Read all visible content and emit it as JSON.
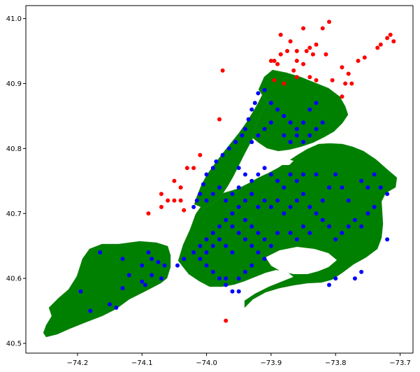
{
  "chart_data": {
    "type": "scatter",
    "title": "",
    "xlabel": "",
    "ylabel": "",
    "xlim": [
      -74.28,
      -73.68
    ],
    "ylim": [
      40.485,
      41.02
    ],
    "xticks": [
      -74.2,
      -74.1,
      -74.0,
      -73.9,
      -73.8,
      -73.7
    ],
    "xtick_labels": [
      "−74.2",
      "−74.1",
      "−74.0",
      "−73.9",
      "−73.8",
      "−73.7"
    ],
    "yticks": [
      40.5,
      40.6,
      40.7,
      40.8,
      40.9,
      41.0
    ],
    "ytick_labels": [
      "40.5",
      "40.6",
      "40.7",
      "40.8",
      "40.9",
      "41.0"
    ],
    "grid": false,
    "legend": "none",
    "background_map": {
      "fill": "#008000",
      "region": "New York City boroughs"
    },
    "series": [
      {
        "color": "#ff0000",
        "points": [
          [
            -73.97,
            40.535
          ],
          [
            -73.98,
            40.845
          ],
          [
            -73.975,
            40.92
          ],
          [
            -74.09,
            40.7
          ],
          [
            -74.06,
            40.72
          ],
          [
            -74.07,
            40.73
          ],
          [
            -74.05,
            40.75
          ],
          [
            -74.04,
            40.74
          ],
          [
            -74.02,
            40.77
          ],
          [
            -74.03,
            40.77
          ],
          [
            -74.01,
            40.79
          ],
          [
            -74.05,
            40.72
          ],
          [
            -74.04,
            40.72
          ],
          [
            -74.07,
            40.71
          ],
          [
            -74.035,
            40.705
          ],
          [
            -73.89,
            40.93
          ],
          [
            -73.885,
            40.975
          ],
          [
            -73.87,
            40.965
          ],
          [
            -73.85,
            40.985
          ],
          [
            -73.82,
            40.985
          ],
          [
            -73.81,
            40.995
          ],
          [
            -73.84,
            40.955
          ],
          [
            -73.83,
            40.96
          ],
          [
            -73.815,
            40.945
          ],
          [
            -73.835,
            40.945
          ],
          [
            -73.845,
            40.95
          ],
          [
            -73.885,
            40.945
          ],
          [
            -73.875,
            40.95
          ],
          [
            -73.86,
            40.95
          ],
          [
            -73.86,
            40.935
          ],
          [
            -73.85,
            40.93
          ],
          [
            -73.865,
            40.92
          ],
          [
            -73.84,
            40.91
          ],
          [
            -73.83,
            40.905
          ],
          [
            -73.805,
            40.905
          ],
          [
            -73.79,
            40.925
          ],
          [
            -73.785,
            40.9
          ],
          [
            -73.775,
            40.9
          ],
          [
            -73.78,
            40.915
          ],
          [
            -73.79,
            40.88
          ],
          [
            -73.765,
            40.935
          ],
          [
            -73.755,
            40.94
          ],
          [
            -73.735,
            40.955
          ],
          [
            -73.73,
            40.96
          ],
          [
            -73.72,
            40.97
          ],
          [
            -73.715,
            40.975
          ],
          [
            -73.71,
            40.965
          ],
          [
            -73.88,
            40.9
          ],
          [
            -73.895,
            40.905
          ],
          [
            -73.86,
            40.91
          ],
          [
            -73.895,
            40.935
          ],
          [
            -73.9,
            40.935
          ]
        ]
      },
      {
        "color": "#0000ff",
        "points": [
          [
            -74.195,
            40.58
          ],
          [
            -74.18,
            40.55
          ],
          [
            -74.15,
            40.56
          ],
          [
            -74.14,
            40.555
          ],
          [
            -74.13,
            40.585
          ],
          [
            -74.12,
            40.605
          ],
          [
            -74.165,
            40.64
          ],
          [
            -74.13,
            40.63
          ],
          [
            -74.1,
            40.62
          ],
          [
            -74.085,
            40.605
          ],
          [
            -74.07,
            40.6
          ],
          [
            -74.09,
            40.64
          ],
          [
            -74.1,
            40.595
          ],
          [
            -74.095,
            40.59
          ],
          [
            -74.085,
            40.63
          ],
          [
            -74.075,
            40.625
          ],
          [
            -74.065,
            40.62
          ],
          [
            -74.045,
            40.62
          ],
          [
            -74.035,
            40.63
          ],
          [
            -74.02,
            40.64
          ],
          [
            -74.01,
            40.63
          ],
          [
            -74.0,
            40.62
          ],
          [
            -73.99,
            40.61
          ],
          [
            -73.98,
            40.6
          ],
          [
            -73.97,
            40.59
          ],
          [
            -73.96,
            40.58
          ],
          [
            -73.95,
            40.6
          ],
          [
            -73.94,
            40.61
          ],
          [
            -73.93,
            40.62
          ],
          [
            -74.0,
            40.66
          ],
          [
            -73.99,
            40.67
          ],
          [
            -73.98,
            40.68
          ],
          [
            -73.97,
            40.69
          ],
          [
            -73.96,
            40.7
          ],
          [
            -73.95,
            40.71
          ],
          [
            -73.94,
            40.69
          ],
          [
            -73.93,
            40.68
          ],
          [
            -73.92,
            40.67
          ],
          [
            -73.91,
            40.66
          ],
          [
            -73.9,
            40.65
          ],
          [
            -73.89,
            40.67
          ],
          [
            -73.88,
            40.7
          ],
          [
            -73.87,
            40.71
          ],
          [
            -73.86,
            40.72
          ],
          [
            -73.85,
            40.73
          ],
          [
            -73.84,
            40.71
          ],
          [
            -73.83,
            40.7
          ],
          [
            -73.82,
            40.72
          ],
          [
            -73.81,
            40.74
          ],
          [
            -73.8,
            40.76
          ],
          [
            -73.79,
            40.74
          ],
          [
            -73.78,
            40.72
          ],
          [
            -73.77,
            40.69
          ],
          [
            -73.76,
            40.68
          ],
          [
            -73.75,
            40.7
          ],
          [
            -73.74,
            40.71
          ],
          [
            -73.73,
            40.74
          ],
          [
            -73.72,
            40.73
          ],
          [
            -73.72,
            40.66
          ],
          [
            -74.02,
            40.71
          ],
          [
            -74.015,
            40.72
          ],
          [
            -74.01,
            40.73
          ],
          [
            -74.005,
            40.745
          ],
          [
            -74.0,
            40.76
          ],
          [
            -73.99,
            40.77
          ],
          [
            -73.985,
            40.78
          ],
          [
            -73.975,
            40.79
          ],
          [
            -73.965,
            40.8
          ],
          [
            -73.955,
            40.81
          ],
          [
            -73.945,
            40.82
          ],
          [
            -73.94,
            40.83
          ],
          [
            -73.935,
            40.845
          ],
          [
            -73.93,
            40.86
          ],
          [
            -73.925,
            40.87
          ],
          [
            -73.92,
            40.885
          ],
          [
            -73.91,
            40.89
          ],
          [
            -73.9,
            40.87
          ],
          [
            -73.89,
            40.86
          ],
          [
            -73.88,
            40.85
          ],
          [
            -73.87,
            40.84
          ],
          [
            -73.86,
            40.83
          ],
          [
            -73.85,
            40.84
          ],
          [
            -73.84,
            40.86
          ],
          [
            -73.83,
            40.87
          ],
          [
            -73.9,
            40.84
          ],
          [
            -73.91,
            40.83
          ],
          [
            -73.92,
            40.82
          ],
          [
            -73.93,
            40.81
          ],
          [
            -73.88,
            40.82
          ],
          [
            -73.87,
            40.81
          ],
          [
            -73.86,
            40.82
          ],
          [
            -73.85,
            40.81
          ],
          [
            -73.84,
            40.82
          ],
          [
            -73.83,
            40.83
          ],
          [
            -73.82,
            40.84
          ],
          [
            -73.95,
            40.77
          ],
          [
            -73.94,
            40.76
          ],
          [
            -73.93,
            40.75
          ],
          [
            -73.92,
            40.76
          ],
          [
            -73.91,
            40.77
          ],
          [
            -73.9,
            40.76
          ],
          [
            -73.89,
            40.75
          ],
          [
            -73.88,
            40.74
          ],
          [
            -73.87,
            40.76
          ],
          [
            -73.86,
            40.75
          ],
          [
            -73.85,
            40.76
          ],
          [
            -73.83,
            40.76
          ],
          [
            -73.95,
            40.74
          ],
          [
            -73.96,
            40.73
          ],
          [
            -73.97,
            40.72
          ],
          [
            -73.98,
            40.74
          ],
          [
            -73.99,
            40.73
          ],
          [
            -74.0,
            40.72
          ],
          [
            -73.94,
            40.72
          ],
          [
            -73.93,
            40.73
          ],
          [
            -73.92,
            40.71
          ],
          [
            -73.91,
            40.72
          ],
          [
            -73.9,
            40.71
          ],
          [
            -73.89,
            40.72
          ],
          [
            -73.96,
            40.68
          ],
          [
            -73.95,
            40.67
          ],
          [
            -73.94,
            40.66
          ],
          [
            -73.93,
            40.65
          ],
          [
            -73.92,
            40.64
          ],
          [
            -73.91,
            40.63
          ],
          [
            -73.96,
            40.64
          ],
          [
            -73.97,
            40.65
          ],
          [
            -73.98,
            40.66
          ],
          [
            -73.99,
            40.65
          ],
          [
            -74.0,
            40.64
          ],
          [
            -74.01,
            40.65
          ],
          [
            -73.87,
            40.67
          ],
          [
            -73.86,
            40.66
          ],
          [
            -73.85,
            40.68
          ],
          [
            -73.84,
            40.67
          ],
          [
            -73.82,
            40.69
          ],
          [
            -73.81,
            40.68
          ],
          [
            -73.8,
            40.66
          ],
          [
            -73.79,
            40.67
          ],
          [
            -73.78,
            40.68
          ],
          [
            -73.74,
            40.76
          ],
          [
            -73.75,
            40.74
          ],
          [
            -73.76,
            40.75
          ],
          [
            -73.8,
            40.6
          ],
          [
            -73.81,
            40.59
          ],
          [
            -73.77,
            40.6
          ],
          [
            -73.76,
            40.61
          ],
          [
            -73.95,
            40.58
          ],
          [
            -73.97,
            40.6
          ]
        ]
      }
    ]
  }
}
